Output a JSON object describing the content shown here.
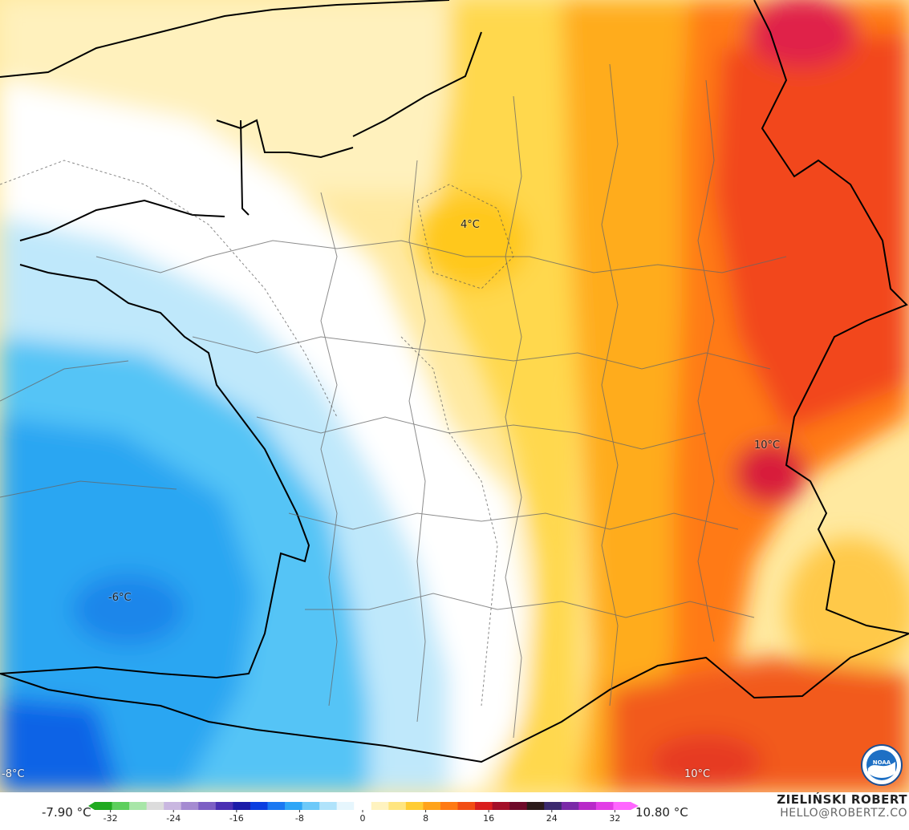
{
  "map": {
    "labels": {
      "paris_area": "4°C",
      "alps": "10°C",
      "bay_of_biscay": "-6°C",
      "southwest_corner": "-8°C",
      "southeast_bottom": "10°C"
    }
  },
  "legend": {
    "min_value": "-7.90 °C",
    "max_value": "10.80 °C",
    "range": [
      -34,
      34
    ],
    "ticks": [
      "-32",
      "-24",
      "-16",
      "-8",
      "0",
      "8",
      "16",
      "24",
      "32"
    ],
    "colors": [
      "#1faa1f",
      "#5ccf5c",
      "#a8e6a8",
      "#dcdcdc",
      "#c9b7e0",
      "#a58bd1",
      "#7d5fc4",
      "#4a2fb3",
      "#1b1ba8",
      "#0b3fe0",
      "#1a78f2",
      "#2ea6f7",
      "#6dc9f9",
      "#b0e3fb",
      "#e6f6fd",
      "#ffffff",
      "#fff3c0",
      "#ffe580",
      "#ffcc33",
      "#ffa31a",
      "#ff7a14",
      "#f24d14",
      "#d91e1e",
      "#a30f28",
      "#6e0a2a",
      "#2b1a1a",
      "#3b2a6e",
      "#7a2aa8",
      "#b82ac9",
      "#e23ee6",
      "#ff66ff"
    ]
  },
  "credits": {
    "name": "ZIELIŃSKI ROBERT",
    "email": "HELLO@ROBERTZ.CO",
    "logo": "NOAA"
  },
  "icons": {
    "logo": "noaa-logo-icon"
  }
}
